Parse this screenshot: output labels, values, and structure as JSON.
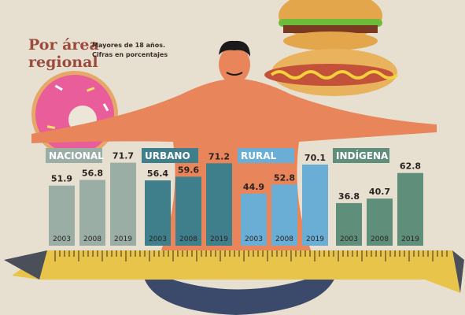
{
  "title": "Por área regional",
  "subtitle": "Mayores de 18 años. Cifras en porcentajes",
  "chart_data": {
    "type": "bar",
    "years": [
      "2003",
      "2008",
      "2019"
    ],
    "ylim": [
      0,
      80
    ],
    "groups": [
      {
        "name": "NACIONAL",
        "values": [
          51.9,
          56.8,
          71.7
        ],
        "color": "#9aaea6",
        "label_bg": "#9aaea6"
      },
      {
        "name": "URBANO",
        "values": [
          56.4,
          59.6,
          71.2
        ],
        "color": "#3f7f8c",
        "label_bg": "#3f7f8c"
      },
      {
        "name": "RURAL",
        "values": [
          44.9,
          52.8,
          70.1
        ],
        "color": "#6aaed6",
        "label_bg": "#6aaed6"
      },
      {
        "name": "INDÍGENA",
        "values": [
          36.8,
          40.7,
          62.8
        ],
        "color": "#5f8f7a",
        "label_bg": "#5f8f7a"
      }
    ]
  },
  "colors": {
    "paper": "#ece6d8",
    "skin": "#e8855a",
    "tape": "#e8c44a",
    "tape_end": "#4a4f5a",
    "donut": "#e85d9a"
  }
}
